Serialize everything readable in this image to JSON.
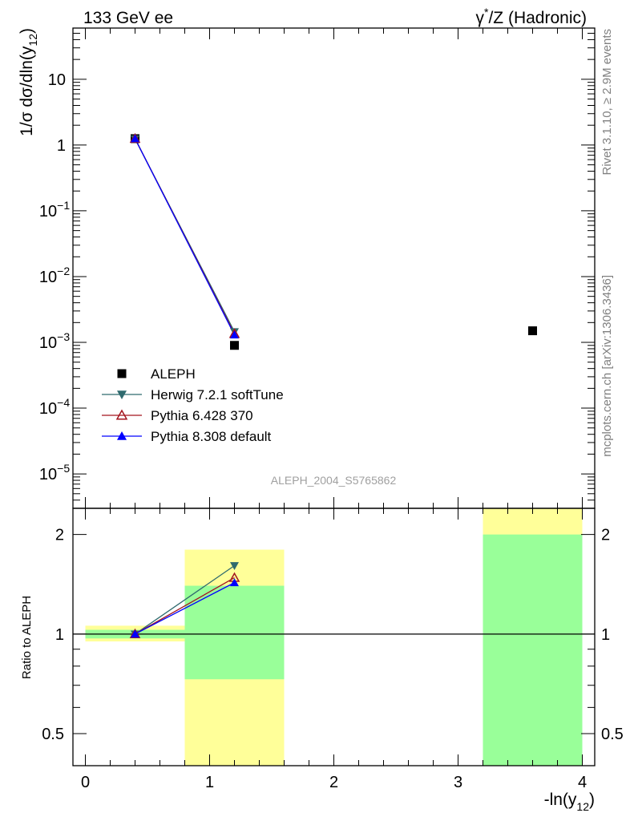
{
  "header": {
    "left_label": "133 GeV ee",
    "right_label": "γ*/Z (Hadronic)"
  },
  "side_labels": {
    "rivet": "Rivet 3.1.10, ≥ 2.9M events",
    "mcplots": "mcplots.cern.ch [arXiv:1306.3436]"
  },
  "watermark": "ALEPH_2004_S5765862",
  "colors": {
    "data": "#000000",
    "herwig": "#2f6a6e",
    "pythia6": "#a3141e",
    "pythia8": "#0000ff",
    "band_inner": "#99ff99",
    "band_outer": "#ffff99"
  },
  "chart_data": [
    {
      "type": "scatter",
      "panel": "main",
      "y_scale": "log",
      "ylabel": "1/σ dσ/dln(y12)",
      "xlim": [
        -0.1,
        4.1
      ],
      "ylim": [
        3e-06,
        60
      ],
      "y_tick_labels": [
        "10",
        "1",
        "10-1",
        "10-2",
        "10-3",
        "10-4",
        "10-5"
      ],
      "legend_placement": "lower-left",
      "series": [
        {
          "name": "ALEPH",
          "marker": "square",
          "x": [
            0.4,
            1.2,
            3.6
          ],
          "y": [
            1.25,
            0.0009,
            0.0015
          ]
        },
        {
          "name": "Herwig 7.2.1 softTune",
          "marker": "triangle-down",
          "x": [
            0.4,
            1.2
          ],
          "y": [
            1.24,
            0.00145
          ]
        },
        {
          "name": "Pythia 6.428 370",
          "marker": "triangle-up-open",
          "x": [
            0.4,
            1.2
          ],
          "y": [
            1.25,
            0.00135
          ]
        },
        {
          "name": "Pythia 8.308 default",
          "marker": "triangle-up",
          "x": [
            0.4,
            1.2
          ],
          "y": [
            1.25,
            0.0013
          ]
        }
      ]
    },
    {
      "type": "line",
      "panel": "ratio",
      "y_scale": "log",
      "ylabel": "Ratio to ALEPH",
      "xlabel": "-ln(y12)",
      "xlim": [
        -0.1,
        4.1
      ],
      "ylim": [
        0.4,
        2.4
      ],
      "x_tick_labels": [
        "0",
        "1",
        "2",
        "3",
        "4"
      ],
      "y_tick_labels": [
        "0.5",
        "1",
        "2"
      ],
      "data_uncertainty_bands": [
        {
          "x_low": 0.0,
          "x_high": 0.8,
          "inner": [
            0.97,
            1.03
          ],
          "outer": [
            0.95,
            1.06
          ]
        },
        {
          "x_low": 0.8,
          "x_high": 1.6,
          "inner": [
            0.73,
            1.4
          ],
          "outer": [
            0.4,
            1.8
          ]
        },
        {
          "x_low": 3.2,
          "x_high": 4.0,
          "inner": [
            0.4,
            2.0
          ],
          "outer": [
            0.4,
            2.4
          ]
        }
      ],
      "series": [
        {
          "name": "Herwig 7.2.1 softTune",
          "x": [
            0.4,
            1.2
          ],
          "y": [
            1.0,
            1.61
          ]
        },
        {
          "name": "Pythia 6.428 370",
          "x": [
            0.4,
            1.2
          ],
          "y": [
            1.0,
            1.48
          ]
        },
        {
          "name": "Pythia 8.308 default",
          "x": [
            0.4,
            1.2
          ],
          "y": [
            1.0,
            1.43
          ]
        }
      ]
    }
  ]
}
